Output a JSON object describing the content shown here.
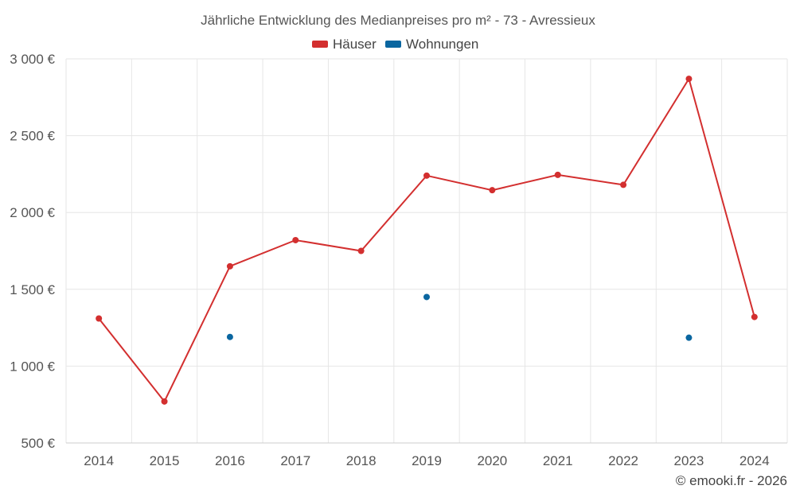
{
  "chart_data": {
    "type": "line",
    "title": "Jährliche Entwicklung des Medianpreises pro m² - 73 - Avressieux",
    "categories": [
      "2014",
      "2015",
      "2016",
      "2017",
      "2018",
      "2019",
      "2020",
      "2021",
      "2022",
      "2023",
      "2024"
    ],
    "series": [
      {
        "name": "Häuser",
        "color": "#d32f2f",
        "values": [
          1310,
          770,
          1650,
          1820,
          1750,
          2240,
          2145,
          2245,
          2180,
          2870,
          1320
        ]
      },
      {
        "name": "Wohnungen",
        "color": "#0a66a0",
        "values": [
          null,
          null,
          1190,
          null,
          null,
          1450,
          null,
          null,
          null,
          1185,
          null
        ]
      }
    ],
    "yticks": [
      "500 €",
      "1 000 €",
      "1 500 €",
      "2 000 €",
      "2 500 €",
      "3 000 €"
    ],
    "ytick_values": [
      500,
      1000,
      1500,
      2000,
      2500,
      3000
    ],
    "ylim": [
      500,
      3000
    ],
    "legend_position": "top-center",
    "grid": true,
    "credit": "© emooki.fr - 2026"
  }
}
